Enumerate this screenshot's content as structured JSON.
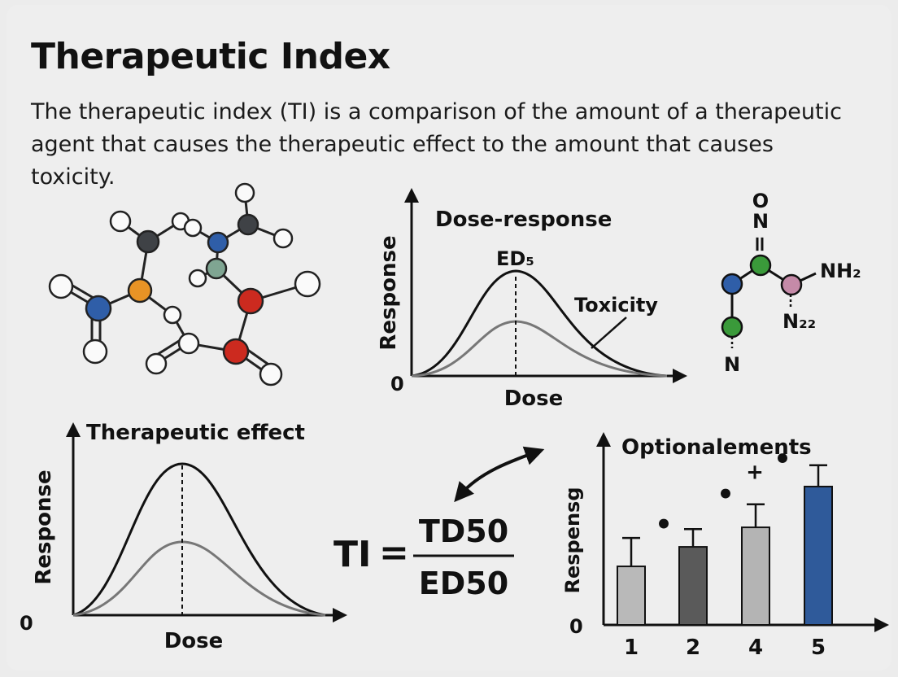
{
  "title": "Therapeutic Index",
  "description": "The therapeutic index (TI) is a comparison of the amount of a therapeutic agent that causes the therapeutic effect to the amount that causes toxicity.",
  "dose_response_chart": {
    "title": "Dose-response",
    "ylabel": "Response",
    "xlabel": "Dose",
    "origin_label": "0",
    "peak_label": "ED₅",
    "curve_label": "Toxicity"
  },
  "molecule_right": {
    "atom_o": "O",
    "atom_n_top": "N",
    "bond_double": "=",
    "atom_nh2": "NH₂",
    "atom_n22": "N₂₂",
    "atom_n_bottom": "N",
    "colors": {
      "blue": "#2f5ea8",
      "green": "#3a9a3a",
      "pink": "#c58aa8"
    }
  },
  "therapeutic_chart": {
    "title": "Therapeutic effect",
    "ylabel": "Response",
    "xlabel": "Dose",
    "origin_label": "0"
  },
  "formula": {
    "lhs": "TI",
    "equals": "=",
    "numerator": "TD50",
    "denominator": "ED50"
  },
  "chart_data": {
    "type": "bar",
    "title": "Optionalements",
    "ylabel": "Respensg",
    "origin_label": "0",
    "categories": [
      "1",
      "2",
      "4",
      "5"
    ],
    "values": [
      0.33,
      0.44,
      0.55,
      0.78
    ],
    "errors": [
      0.16,
      0.1,
      0.13,
      0.12
    ],
    "ylim": [
      0,
      1
    ],
    "bar_colors": [
      "#b9b9b9",
      "#5a5a5a",
      "#b4b4b4",
      "#2f5a9a"
    ],
    "annotations": [
      {
        "text": "•",
        "x_after": "1",
        "y": 0.55
      },
      {
        "text": "•",
        "x_after": "2",
        "y": 0.72
      },
      {
        "text": "+",
        "x_after": "4",
        "y": 0.86
      },
      {
        "text": "•",
        "x_after": "4",
        "y": 0.92
      }
    ]
  }
}
